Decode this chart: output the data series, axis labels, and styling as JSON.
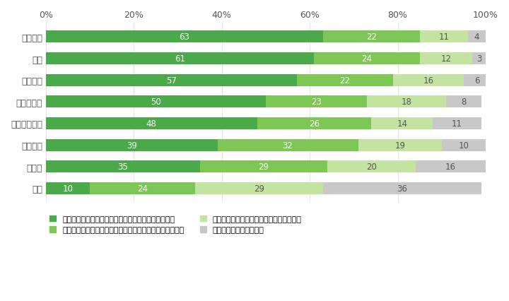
{
  "categories": [
    "ムンバイ",
    "上海",
    "バンコク",
    "ジャカルタ",
    "ニューヨーク",
    "ロンドン",
    "ソウル",
    "東京"
  ],
  "series": [
    {
      "label": "言葉を知っており、サスティナブル消費を行っている",
      "values": [
        63,
        61,
        57,
        50,
        48,
        39,
        35,
        10
      ],
      "color": "#4aaa4a"
    },
    {
      "label": "言葉を知っているが、サスティナブル消費を行っていない",
      "values": [
        22,
        24,
        22,
        23,
        26,
        32,
        29,
        24
      ],
      "color": "#7dc855"
    },
    {
      "label": "言葉は聴いたことはあるがよくわからない",
      "values": [
        11,
        12,
        16,
        18,
        14,
        19,
        20,
        29
      ],
      "color": "#c2e4a0"
    },
    {
      "label": "言葉も聴いたことはない",
      "values": [
        4,
        3,
        6,
        8,
        11,
        10,
        16,
        36
      ],
      "color": "#c8c8c8"
    }
  ],
  "xlim": [
    0,
    100
  ],
  "xticks": [
    0,
    20,
    40,
    60,
    80,
    100
  ],
  "xticklabels": [
    "0%",
    "20%",
    "40%",
    "60%",
    "80%",
    "100%"
  ],
  "bar_height": 0.55,
  "figsize": [
    7.2,
    4.27
  ],
  "dpi": 100,
  "background_color": "#ffffff",
  "font_size_ticks": 9,
  "font_size_bar_text": 8.5,
  "legend_font_size": 8
}
